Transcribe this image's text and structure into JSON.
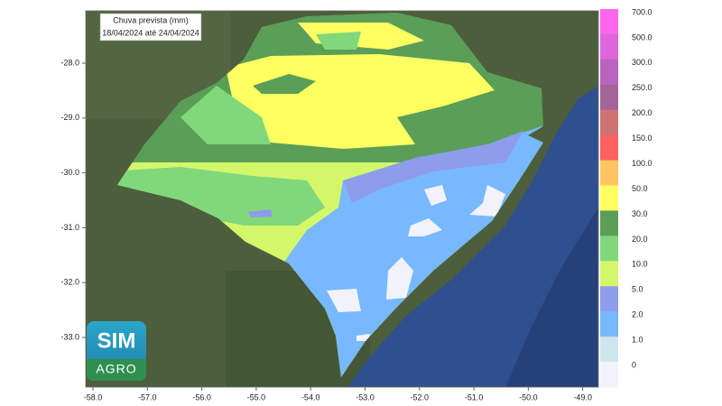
{
  "map": {
    "title": "Chuva prevista (mm)",
    "period": "18/04/2024 até 24/04/2024",
    "lon_ticks": [
      "-58.0",
      "-57.0",
      "-56.0",
      "-55.0",
      "-54.0",
      "-53.0",
      "-52.0",
      "-51.0",
      "-50.0",
      "-49.0"
    ],
    "lat_ticks": [
      "-28.0",
      "-29.0",
      "-30.0",
      "-31.0",
      "-32.0",
      "-33.0"
    ],
    "legend": {
      "labels": [
        "700.0",
        "500.0",
        "300.0",
        "250.0",
        "200.0",
        "150.0",
        "100.0",
        "50.0",
        "30.0",
        "20.0",
        "10.0",
        "5.0",
        "2.0",
        "1.0",
        "0"
      ],
      "colors": [
        "#ff66f0",
        "#dd66dd",
        "#b864bf",
        "#a46598",
        "#cf7272",
        "#ff6060",
        "#ffc462",
        "#ffff62",
        "#5a9e58",
        "#80d87a",
        "#d4f76a",
        "#8e9cec",
        "#78b8ff",
        "#cfe6ee",
        "#f2f2fa"
      ]
    }
  },
  "logo": {
    "line1": "SIM",
    "line2": "AGRO"
  }
}
